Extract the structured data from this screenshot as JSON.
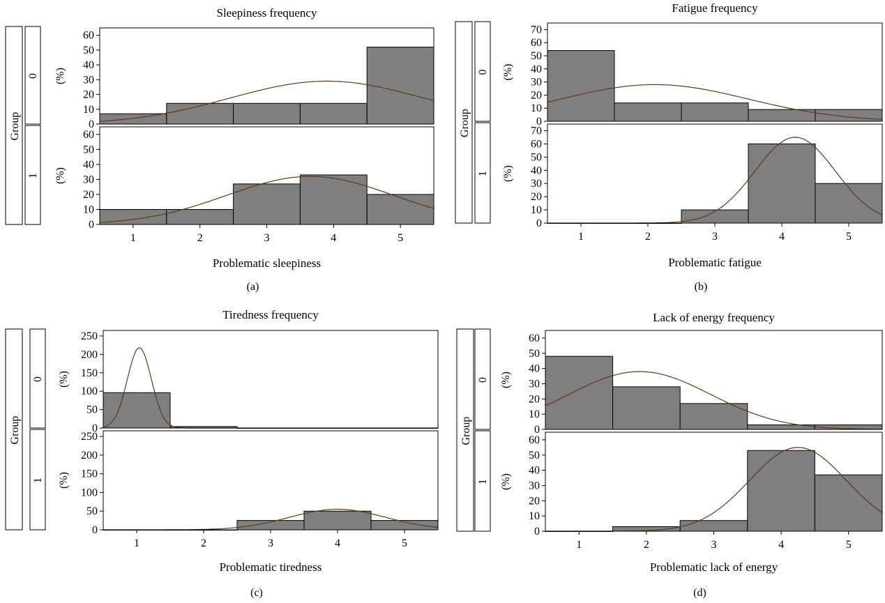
{
  "chart_data": [
    {
      "type": "bar",
      "title": "Sleepiness frequency",
      "xlabel": "Problematic sleepiness",
      "ylabel": "(%)",
      "group_label": "Group",
      "caption": "(a)",
      "categories": [
        "1",
        "2",
        "3",
        "4",
        "5"
      ],
      "ylim": [
        0,
        65
      ],
      "yticks": [
        0,
        10,
        20,
        30,
        40,
        50,
        60
      ],
      "panels": [
        {
          "name": "0",
          "values": [
            7,
            14,
            14,
            14,
            52
          ],
          "fit": {
            "mean": 3.9,
            "sd": 1.45,
            "peak": 29
          }
        },
        {
          "name": "1",
          "values": [
            10,
            10,
            27,
            33,
            20
          ],
          "fit": {
            "mean": 3.65,
            "sd": 1.25,
            "peak": 32
          }
        }
      ]
    },
    {
      "type": "bar",
      "title": "Fatigue frequency",
      "xlabel": "Problematic fatigue",
      "ylabel": "(%)",
      "group_label": "Group",
      "caption": "(b)",
      "categories": [
        "1",
        "2",
        "3",
        "4",
        "5"
      ],
      "ylim": [
        0,
        75
      ],
      "yticks": [
        0,
        10,
        20,
        30,
        40,
        50,
        60,
        70
      ],
      "panels": [
        {
          "name": "0",
          "values": [
            54,
            14,
            14,
            9,
            9
          ],
          "fit": {
            "mean": 2.1,
            "sd": 1.4,
            "peak": 28
          }
        },
        {
          "name": "1",
          "values": [
            0,
            0,
            10,
            60,
            30
          ],
          "fit": {
            "mean": 4.2,
            "sd": 0.6,
            "peak": 65
          }
        }
      ]
    },
    {
      "type": "bar",
      "title": "Tiredness frequency",
      "xlabel": "Problematic tiredness",
      "ylabel": "(%)",
      "group_label": "Group",
      "caption": "(c)",
      "categories": [
        "1",
        "2",
        "3",
        "4",
        "5"
      ],
      "ylim": [
        0,
        265
      ],
      "yticks": [
        0,
        50,
        100,
        150,
        200,
        250
      ],
      "panels": [
        {
          "name": "0",
          "values": [
            96,
            4,
            0,
            0,
            0
          ],
          "fit": {
            "mean": 1.04,
            "sd": 0.18,
            "peak": 218
          }
        },
        {
          "name": "1",
          "values": [
            0,
            0,
            25,
            50,
            25
          ],
          "fit": {
            "mean": 4.0,
            "sd": 0.72,
            "peak": 55
          }
        }
      ]
    },
    {
      "type": "bar",
      "title": "Lack of energy frequency",
      "xlabel": "Problematic lack of energy",
      "ylabel": "(%)",
      "group_label": "Group",
      "caption": "(d)",
      "categories": [
        "1",
        "2",
        "3",
        "4",
        "5"
      ],
      "ylim": [
        0,
        65
      ],
      "yticks": [
        0,
        10,
        20,
        30,
        40,
        50,
        60
      ],
      "panels": [
        {
          "name": "0",
          "values": [
            48,
            28,
            17,
            3,
            3
          ],
          "fit": {
            "mean": 1.9,
            "sd": 1.05,
            "peak": 38
          }
        },
        {
          "name": "1",
          "values": [
            0,
            3,
            7,
            53,
            37
          ],
          "fit": {
            "mean": 4.25,
            "sd": 0.72,
            "peak": 55
          }
        }
      ]
    }
  ]
}
